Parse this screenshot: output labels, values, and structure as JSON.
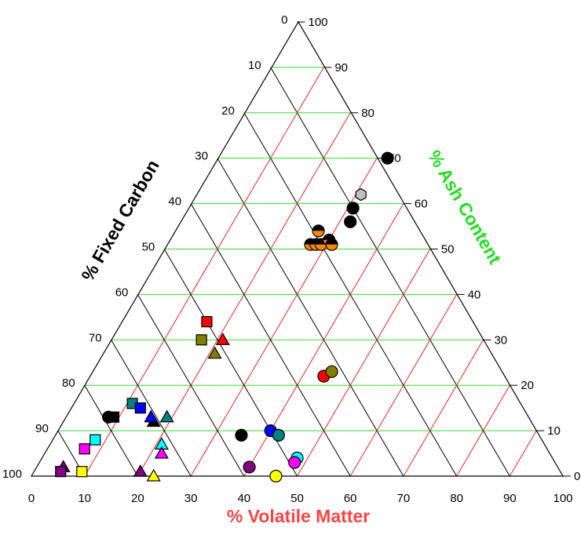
{
  "chart_data": {
    "type": "scatter",
    "subtype": "ternary",
    "axes": {
      "bottom": {
        "label": "% Volatile Matter",
        "color": "#ff4444",
        "ticks": [
          0,
          10,
          20,
          30,
          40,
          50,
          60,
          70,
          80,
          90,
          100
        ]
      },
      "left": {
        "label": "% Fixed Carbon",
        "color": "#000000",
        "ticks": [
          0,
          10,
          20,
          30,
          40,
          50,
          60,
          70,
          80,
          90,
          100
        ]
      },
      "right": {
        "label": "% Ash Content",
        "color": "#22dd22",
        "ticks": [
          0,
          10,
          20,
          30,
          40,
          50,
          60,
          70,
          80,
          90,
          100
        ]
      }
    },
    "grid": {
      "ash_lines_color": "#33dd33",
      "volatile_lines_color": "#ee2222",
      "carbon_lines_color": "#000000"
    },
    "points": [
      {
        "vm": 32,
        "ash": 70,
        "marker": "circle",
        "fill": "#000000"
      },
      {
        "vm": 31,
        "ash": 62,
        "marker": "hexagon",
        "fill": "#c0c0c0"
      },
      {
        "vm": 31,
        "ash": 59,
        "marker": "circle",
        "fill": "#000000"
      },
      {
        "vm": 32,
        "ash": 56,
        "marker": "circle",
        "fill": "#000000"
      },
      {
        "vm": 27,
        "ash": 54,
        "marker": "half-circle",
        "fill": "#ff8800"
      },
      {
        "vm": 27,
        "ash": 51,
        "marker": "half-circle",
        "fill": "#ff8800"
      },
      {
        "vm": 28,
        "ash": 51,
        "marker": "half-circle",
        "fill": "#ff8800"
      },
      {
        "vm": 29,
        "ash": 51,
        "marker": "half-circle",
        "fill": "#ff8800"
      },
      {
        "vm": 30,
        "ash": 52,
        "marker": "half-circle",
        "fill": "#ff8800"
      },
      {
        "vm": 31,
        "ash": 51,
        "marker": "half-circle",
        "fill": "#ff8800"
      },
      {
        "vm": 16,
        "ash": 34,
        "marker": "square",
        "fill": "#ff0000"
      },
      {
        "vm": 17,
        "ash": 30,
        "marker": "square",
        "fill": "#808000"
      },
      {
        "vm": 21,
        "ash": 30,
        "marker": "triangle",
        "fill": "#ff0000"
      },
      {
        "vm": 21,
        "ash": 27,
        "marker": "triangle",
        "fill": "#808000"
      },
      {
        "vm": 44,
        "ash": 22,
        "marker": "circle",
        "fill": "#ff0000"
      },
      {
        "vm": 45,
        "ash": 23,
        "marker": "circle",
        "fill": "#808000"
      },
      {
        "vm": 11,
        "ash": 16,
        "marker": "square",
        "fill": "#008080"
      },
      {
        "vm": 13,
        "ash": 15,
        "marker": "square",
        "fill": "#0000ff"
      },
      {
        "vm": 8,
        "ash": 13,
        "marker": "circle",
        "fill": "#000000"
      },
      {
        "vm": 9,
        "ash": 13,
        "marker": "square",
        "fill": "#000000"
      },
      {
        "vm": 17,
        "ash": 12,
        "marker": "triangle",
        "fill": "#000000"
      },
      {
        "vm": 16,
        "ash": 13,
        "marker": "triangle",
        "fill": "#0000ff"
      },
      {
        "vm": 19,
        "ash": 13,
        "marker": "triangle",
        "fill": "#008080"
      },
      {
        "vm": 8,
        "ash": 8,
        "marker": "square",
        "fill": "#00ffff"
      },
      {
        "vm": 7,
        "ash": 6,
        "marker": "square",
        "fill": "#ff00ff"
      },
      {
        "vm": 21,
        "ash": 7,
        "marker": "triangle",
        "fill": "#00ffff"
      },
      {
        "vm": 22,
        "ash": 5,
        "marker": "triangle",
        "fill": "#ff00ff"
      },
      {
        "vm": 5,
        "ash": 2,
        "marker": "triangle",
        "fill": "#800080"
      },
      {
        "vm": 5,
        "ash": 1,
        "marker": "square",
        "fill": "#800080"
      },
      {
        "vm": 9,
        "ash": 1,
        "marker": "square",
        "fill": "#ffff00"
      },
      {
        "vm": 20,
        "ash": 1,
        "marker": "triangle",
        "fill": "#800080"
      },
      {
        "vm": 23,
        "ash": 0,
        "marker": "triangle",
        "fill": "#ffff00"
      },
      {
        "vm": 35,
        "ash": 9,
        "marker": "circle",
        "fill": "#000000"
      },
      {
        "vm": 40,
        "ash": 10,
        "marker": "circle",
        "fill": "#0000ff"
      },
      {
        "vm": 42,
        "ash": 9,
        "marker": "circle",
        "fill": "#008080"
      },
      {
        "vm": 48,
        "ash": 4,
        "marker": "circle",
        "fill": "#00ffff"
      },
      {
        "vm": 48,
        "ash": 3,
        "marker": "circle",
        "fill": "#ff00ff"
      },
      {
        "vm": 40,
        "ash": 2,
        "marker": "circle",
        "fill": "#800080"
      },
      {
        "vm": 46,
        "ash": 0,
        "marker": "circle",
        "fill": "#ffff00"
      }
    ]
  }
}
